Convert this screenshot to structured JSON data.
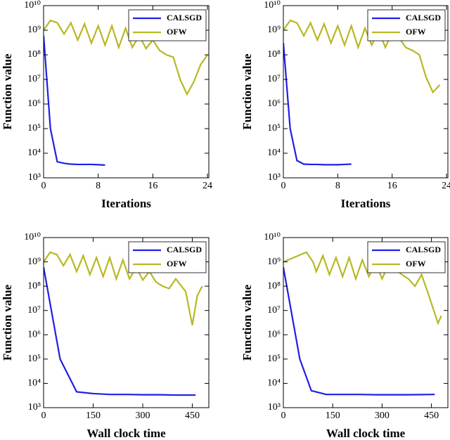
{
  "chart_data": [
    {
      "type": "line",
      "xlabel": "Iterations",
      "ylabel": "Function value",
      "yscale": "log",
      "grid": false,
      "legend": "upper right",
      "xlim": [
        0,
        24.2
      ],
      "xticks": [
        0,
        8,
        16,
        24
      ],
      "ylim": [
        1000,
        10000000000
      ],
      "yticks": [
        {
          "value": 1000,
          "label": "10³"
        },
        {
          "value": 10000,
          "label": "10⁴"
        },
        {
          "value": 100000,
          "label": "10⁵"
        },
        {
          "value": 1000000,
          "label": "10⁶"
        },
        {
          "value": 10000000,
          "label": "10⁷"
        },
        {
          "value": 100000000,
          "label": "10⁸"
        },
        {
          "value": 1000000000,
          "label": "10⁹"
        },
        {
          "value": 10000000000,
          "label": "10¹⁰"
        }
      ],
      "series": [
        {
          "name": "CALSGD",
          "color": "#1f1fe6",
          "x": [
            0,
            1,
            2,
            3,
            4,
            5,
            6,
            7,
            8,
            9
          ],
          "values": [
            600000000,
            100000,
            4500,
            3900,
            3600,
            3500,
            3500,
            3500,
            3400,
            3300
          ]
        },
        {
          "name": "OFW",
          "color": "#b8b825",
          "x": [
            0,
            1,
            2,
            3,
            4,
            5,
            6,
            7,
            8,
            9,
            10,
            11,
            12,
            13,
            14,
            15,
            16,
            17,
            18,
            19,
            20,
            21,
            22,
            23,
            24
          ],
          "values": [
            1000000000,
            2500000000,
            2000000000,
            700000000,
            2000000000,
            400000000,
            1800000000,
            300000000,
            1500000000,
            250000000,
            1500000000,
            200000000,
            1200000000,
            200000000,
            600000000,
            180000000,
            400000000,
            150000000,
            100000000,
            80000000,
            10000000,
            2500000,
            8000000,
            40000000,
            100000000
          ]
        }
      ]
    },
    {
      "type": "line",
      "xlabel": "Iterations",
      "ylabel": "Function value",
      "yscale": "log",
      "grid": false,
      "legend": "upper right",
      "xlim": [
        0,
        24.2
      ],
      "xticks": [
        0,
        8,
        16,
        24
      ],
      "ylim": [
        1000,
        10000000000
      ],
      "yticks": [
        {
          "value": 1000,
          "label": "10³"
        },
        {
          "value": 10000,
          "label": "10⁴"
        },
        {
          "value": 100000,
          "label": "10⁵"
        },
        {
          "value": 1000000,
          "label": "10⁶"
        },
        {
          "value": 10000000,
          "label": "10⁷"
        },
        {
          "value": 100000000,
          "label": "10⁸"
        },
        {
          "value": 1000000000,
          "label": "10⁹"
        },
        {
          "value": 10000000000,
          "label": "10¹⁰"
        }
      ],
      "series": [
        {
          "name": "CALSGD",
          "color": "#1f1fe6",
          "x": [
            0,
            1,
            2,
            3,
            4,
            5,
            6,
            7,
            8,
            9,
            10
          ],
          "values": [
            300000000,
            100000,
            5000,
            3600,
            3500,
            3500,
            3400,
            3400,
            3400,
            3500,
            3600
          ]
        },
        {
          "name": "OFW",
          "color": "#b8b825",
          "x": [
            0,
            1,
            2,
            3,
            4,
            5,
            6,
            7,
            8,
            9,
            10,
            11,
            12,
            13,
            14,
            15,
            16,
            17,
            18,
            19,
            20,
            21,
            22,
            23
          ],
          "values": [
            1000000000,
            2500000000,
            2000000000,
            600000000,
            2000000000,
            400000000,
            1800000000,
            300000000,
            1500000000,
            250000000,
            1500000000,
            200000000,
            1200000000,
            250000000,
            1000000000,
            200000000,
            800000000,
            500000000,
            200000000,
            150000000,
            100000000,
            12000000,
            3000000,
            6000000
          ]
        }
      ]
    },
    {
      "type": "line",
      "xlabel": "Wall clock time",
      "ylabel": "Function value",
      "yscale": "log",
      "grid": false,
      "legend": "upper right",
      "xlim": [
        0,
        500
      ],
      "xticks": [
        0,
        150,
        300,
        450
      ],
      "ylim": [
        1000,
        10000000000
      ],
      "yticks": [
        {
          "value": 1000,
          "label": "10³"
        },
        {
          "value": 10000,
          "label": "10⁴"
        },
        {
          "value": 100000,
          "label": "10⁵"
        },
        {
          "value": 1000000,
          "label": "10⁶"
        },
        {
          "value": 10000000,
          "label": "10⁷"
        },
        {
          "value": 100000000,
          "label": "10⁸"
        },
        {
          "value": 1000000000,
          "label": "10⁹"
        },
        {
          "value": 10000000000,
          "label": "10¹⁰"
        }
      ],
      "series": [
        {
          "name": "CALSGD",
          "color": "#1f1fe6",
          "x": [
            0,
            50,
            100,
            150,
            200,
            250,
            300,
            350,
            400,
            460
          ],
          "values": [
            600000000,
            100000,
            4500,
            3800,
            3500,
            3500,
            3400,
            3400,
            3300,
            3300
          ]
        },
        {
          "name": "OFW",
          "color": "#b8b825",
          "x": [
            0,
            20,
            40,
            60,
            80,
            100,
            120,
            140,
            160,
            180,
            200,
            220,
            240,
            260,
            280,
            300,
            320,
            340,
            360,
            380,
            400,
            430,
            450,
            465,
            480
          ],
          "values": [
            1000000000,
            2500000000,
            2000000000,
            700000000,
            2000000000,
            400000000,
            1800000000,
            300000000,
            1500000000,
            250000000,
            1500000000,
            200000000,
            1200000000,
            200000000,
            600000000,
            180000000,
            400000000,
            150000000,
            100000000,
            80000000,
            200000000,
            60000000,
            2500000,
            40000000,
            100000000
          ]
        }
      ]
    },
    {
      "type": "line",
      "xlabel": "Wall clock time",
      "ylabel": "Function value",
      "yscale": "log",
      "grid": false,
      "legend": "upper right",
      "xlim": [
        0,
        500
      ],
      "xticks": [
        0,
        150,
        300,
        450
      ],
      "ylim": [
        1000,
        10000000000
      ],
      "yticks": [
        {
          "value": 1000,
          "label": "10³"
        },
        {
          "value": 10000,
          "label": "10⁴"
        },
        {
          "value": 100000,
          "label": "10⁵"
        },
        {
          "value": 1000000,
          "label": "10⁶"
        },
        {
          "value": 10000000,
          "label": "10⁷"
        },
        {
          "value": 100000000,
          "label": "10⁸"
        },
        {
          "value": 1000000000,
          "label": "10⁹"
        },
        {
          "value": 10000000000,
          "label": "10¹⁰"
        }
      ],
      "series": [
        {
          "name": "CALSGD",
          "color": "#1f1fe6",
          "x": [
            0,
            50,
            85,
            130,
            180,
            230,
            280,
            330,
            380,
            460
          ],
          "values": [
            600000000,
            100000,
            5000,
            3500,
            3500,
            3500,
            3400,
            3400,
            3400,
            3500
          ]
        },
        {
          "name": "OFW",
          "color": "#b8b825",
          "x": [
            0,
            70,
            90,
            100,
            120,
            140,
            160,
            180,
            200,
            220,
            240,
            260,
            280,
            300,
            320,
            340,
            360,
            380,
            400,
            420,
            440,
            470,
            480
          ],
          "values": [
            1000000000,
            2500000000,
            1000000000,
            400000000,
            1800000000,
            300000000,
            1500000000,
            250000000,
            1500000000,
            200000000,
            1200000000,
            250000000,
            1000000000,
            200000000,
            800000000,
            500000000,
            300000000,
            200000000,
            100000000,
            300000000,
            50000000,
            3000000,
            6000000
          ]
        }
      ]
    }
  ]
}
